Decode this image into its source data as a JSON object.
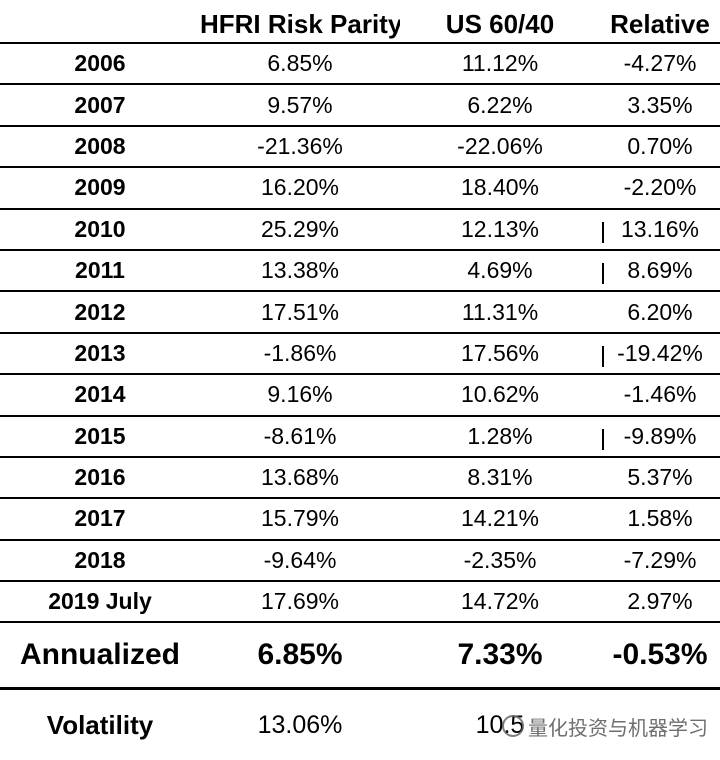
{
  "table": {
    "headers": [
      "",
      "HFRI Risk Parity",
      "US 60/40",
      "Relative"
    ],
    "rows": [
      {
        "year": "2006",
        "hfri": "6.85%",
        "us6040": "11.12%",
        "relative": "-4.27%",
        "bar": false
      },
      {
        "year": "2007",
        "hfri": "9.57%",
        "us6040": "6.22%",
        "relative": "3.35%",
        "bar": false
      },
      {
        "year": "2008",
        "hfri": "-21.36%",
        "us6040": "-22.06%",
        "relative": "0.70%",
        "bar": false
      },
      {
        "year": "2009",
        "hfri": "16.20%",
        "us6040": "18.40%",
        "relative": "-2.20%",
        "bar": false
      },
      {
        "year": "2010",
        "hfri": "25.29%",
        "us6040": "12.13%",
        "relative": "13.16%",
        "bar": true
      },
      {
        "year": "2011",
        "hfri": "13.38%",
        "us6040": "4.69%",
        "relative": "8.69%",
        "bar": true
      },
      {
        "year": "2012",
        "hfri": "17.51%",
        "us6040": "11.31%",
        "relative": "6.20%",
        "bar": false
      },
      {
        "year": "2013",
        "hfri": "-1.86%",
        "us6040": "17.56%",
        "relative": "-19.42%",
        "bar": true
      },
      {
        "year": "2014",
        "hfri": "9.16%",
        "us6040": "10.62%",
        "relative": "-1.46%",
        "bar": false
      },
      {
        "year": "2015",
        "hfri": "-8.61%",
        "us6040": "1.28%",
        "relative": "-9.89%",
        "bar": true
      },
      {
        "year": "2016",
        "hfri": "13.68%",
        "us6040": "8.31%",
        "relative": "5.37%",
        "bar": false
      },
      {
        "year": "2017",
        "hfri": "15.79%",
        "us6040": "14.21%",
        "relative": "1.58%",
        "bar": false
      },
      {
        "year": "2018",
        "hfri": "-9.64%",
        "us6040": "-2.35%",
        "relative": "-7.29%",
        "bar": false
      },
      {
        "year": "2019 July",
        "hfri": "17.69%",
        "us6040": "14.72%",
        "relative": "2.97%",
        "bar": false
      }
    ],
    "annualized": {
      "label": "Annualized",
      "hfri": "6.85%",
      "us6040": "7.33%",
      "relative": "-0.53%"
    },
    "volatility": {
      "label": "Volatility",
      "hfri": "13.06%",
      "us6040": "10.5",
      "relative": ""
    }
  },
  "watermark": {
    "text": "量化投资与机器学习",
    "icon": "wechat-icon"
  }
}
